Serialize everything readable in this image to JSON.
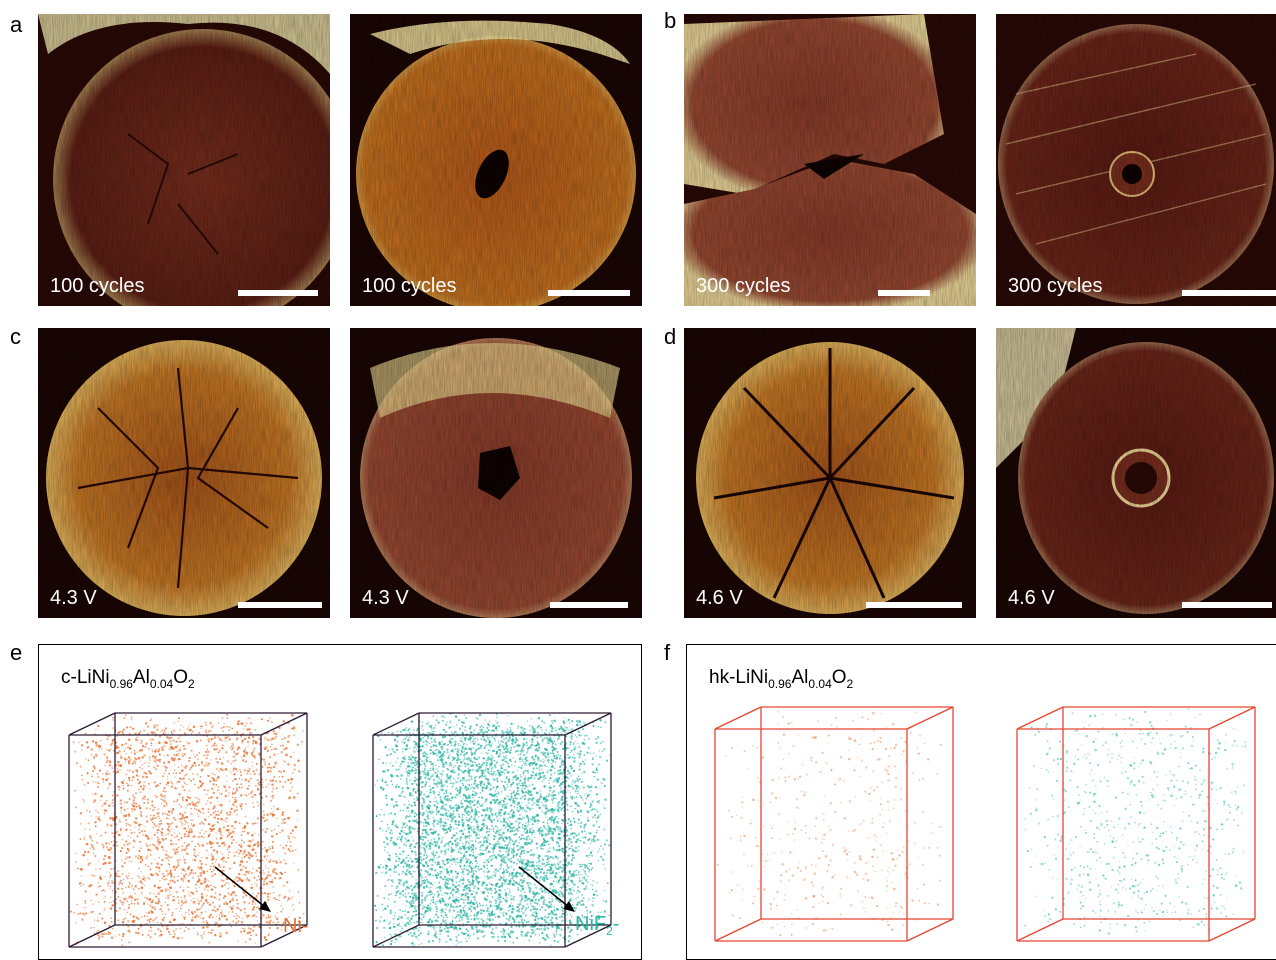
{
  "panels": {
    "a": {
      "letter": "a",
      "left_label": "100 cycles",
      "right_label": "100 cycles"
    },
    "b": {
      "letter": "b",
      "left_label": "300 cycles",
      "right_label": "300 cycles"
    },
    "c": {
      "letter": "c",
      "left_label": "4.3 V",
      "right_label": "4.3 V"
    },
    "d": {
      "letter": "d",
      "left_label": "4.6 V",
      "right_label": "4.6 V"
    },
    "e": {
      "letter": "e",
      "title": {
        "prefix": "c-LiNi",
        "sub1": "0.96",
        "mid": "Al",
        "sub2": "0.04",
        "suffix": "O",
        "sub3": "2"
      },
      "ni_label": "Ni-",
      "nif2_label": {
        "main": "NiF",
        "sub": "2",
        "tail": "-"
      }
    },
    "f": {
      "letter": "f",
      "title": {
        "prefix": "hk-LiNi",
        "sub1": "0.96",
        "mid": "Al",
        "sub2": "0.04",
        "suffix": "O",
        "sub3": "2"
      }
    }
  },
  "colors": {
    "ni": "#e8702f",
    "nif2": "#2bb5a5",
    "cube_edge_e": "#2a1a33",
    "cube_edge_f": "#e8452f"
  }
}
